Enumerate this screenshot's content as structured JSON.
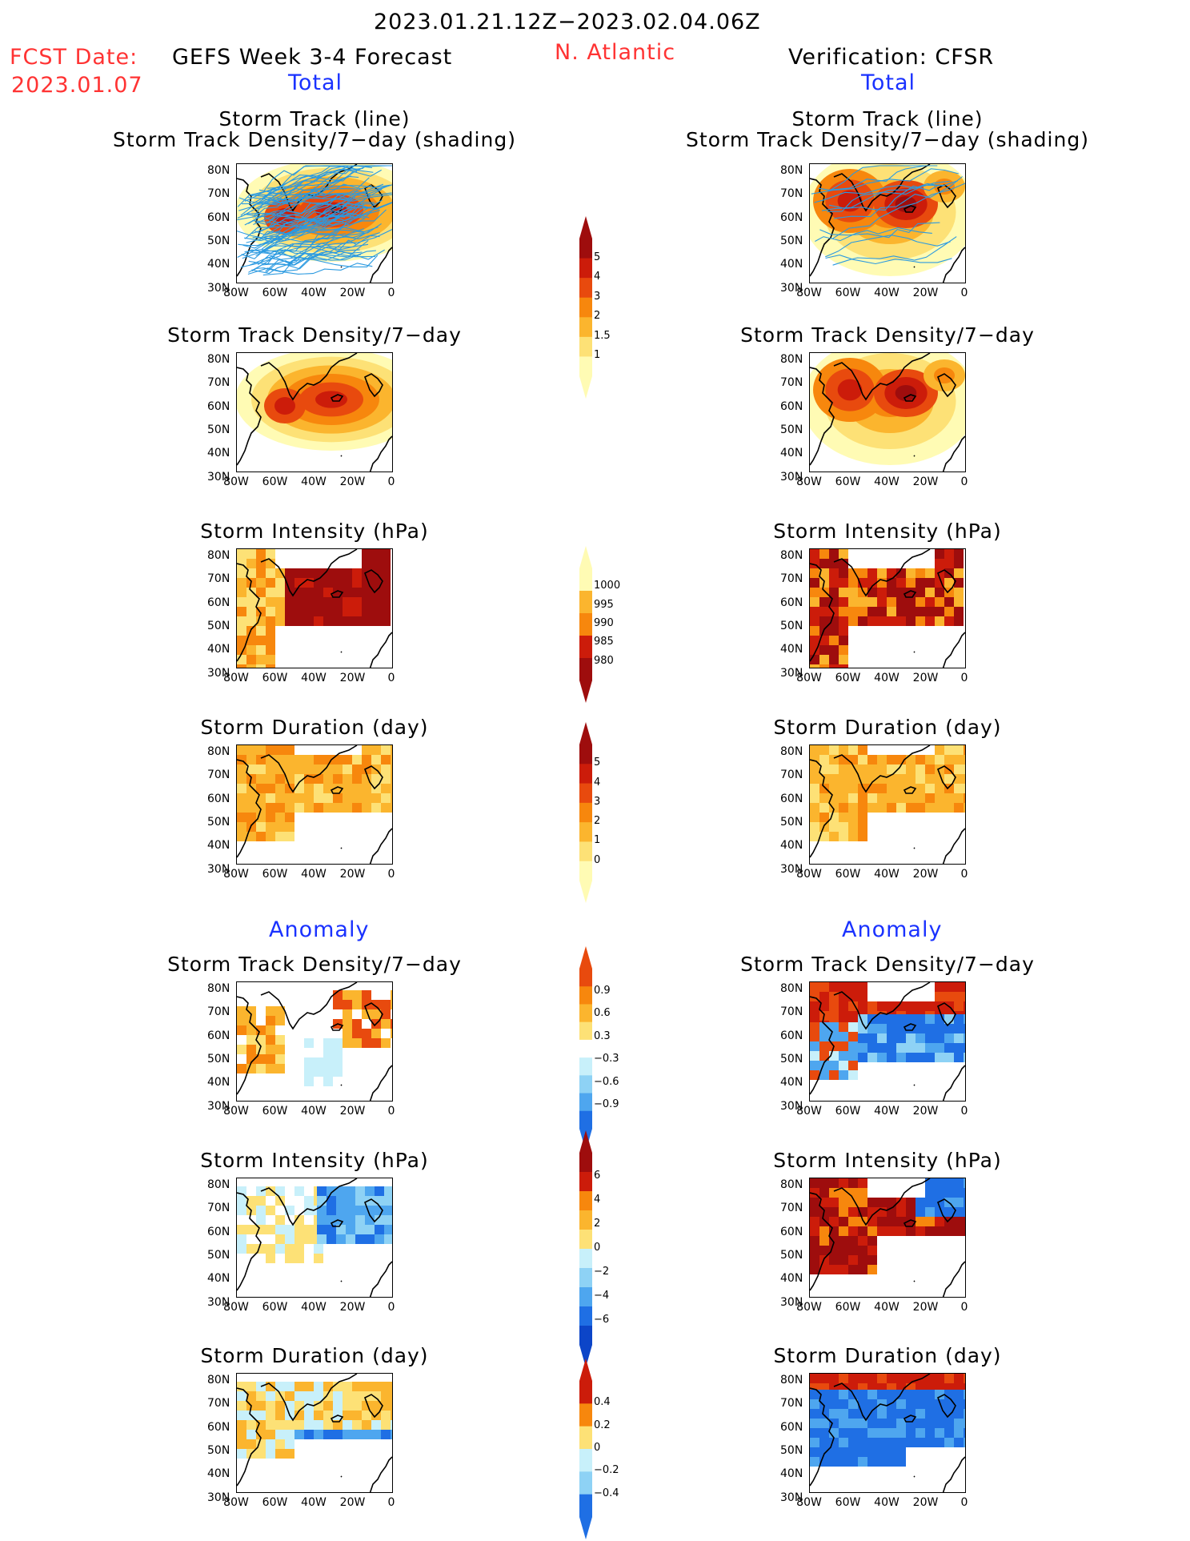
{
  "header": {
    "period": "2023.01.21.12Z−2023.02.04.06Z",
    "fcst_label": "FCST Date:",
    "fcst_date": "2023.01.07",
    "model": "GEFS Week 3-4 Forecast",
    "region": "N. Atlantic",
    "verification": "Verification: CFSR",
    "left_section": "Total",
    "right_section": "Total"
  },
  "anomaly_labels": {
    "left": "Anomaly",
    "right": "Anomaly"
  },
  "panel_titles": {
    "track_line": "Storm Track (line)",
    "track_shade": "Storm Track Density/7−day (shading)",
    "density": "Storm Track Density/7−day",
    "intensity": "Storm Intensity (hPa)",
    "duration": "Storm Duration (day)"
  },
  "axes": {
    "lat_ticks": [
      "80N",
      "70N",
      "60N",
      "50N",
      "40N",
      "30N"
    ],
    "lon_ticks": [
      "80W",
      "60W",
      "40W",
      "20W",
      "0"
    ]
  },
  "colorbars": {
    "density_total": [
      "5",
      "4",
      "3",
      "2",
      "1.5",
      "1"
    ],
    "intensity_total": [
      "1000",
      "995",
      "990",
      "985",
      "980"
    ],
    "duration_total": [
      "5",
      "4",
      "3",
      "2",
      "1",
      "0"
    ],
    "density_anom": [
      "0.9",
      "0.6",
      "0.3",
      "−0.3",
      "−0.6",
      "−0.9"
    ],
    "intensity_anom": [
      "6",
      "4",
      "2",
      "0",
      "−2",
      "−4",
      "−6"
    ],
    "duration_anom": [
      "0.4",
      "0.2",
      "0",
      "−0.2",
      "−0.4"
    ]
  },
  "colors": {
    "title_red": "#ff3333",
    "title_blue": "#1a32ff",
    "warm": [
      "#fffbb4",
      "#fde176",
      "#fbb52e",
      "#f7870d",
      "#e84a0e",
      "#cc1c0a",
      "#9e0d0d"
    ],
    "cool": [
      "#c8f0fa",
      "#8ed2f5",
      "#4ea6ef",
      "#1f6fe4",
      "#0c45c8"
    ],
    "track_line": "#2b9ae0"
  }
}
